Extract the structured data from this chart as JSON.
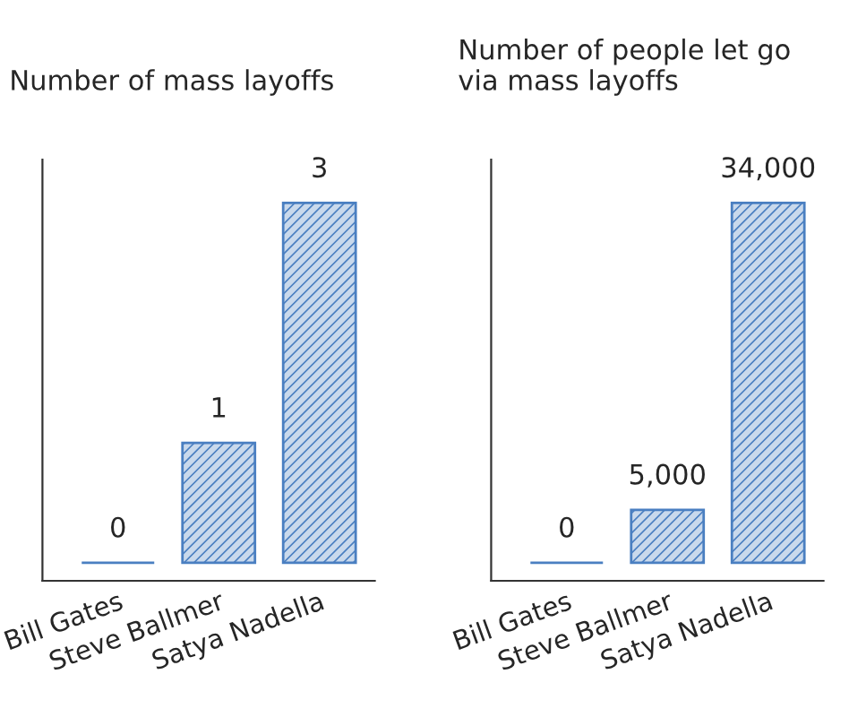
{
  "chart_data": [
    {
      "type": "bar",
      "title": "Number of mass layoffs",
      "categories": [
        "Bill Gates",
        "Steve Ballmer",
        "Satya Nadella"
      ],
      "values": [
        0,
        1,
        3
      ],
      "value_labels": [
        "0",
        "1",
        "3"
      ],
      "color": "#4a7fc1",
      "tick_labels": "x"
    },
    {
      "type": "bar",
      "title": "Number of people let go\nvia mass layoffs",
      "categories": [
        "Bill Gates",
        "Steve Ballmer",
        "Satya Nadella"
      ],
      "values": [
        0,
        5000,
        34000
      ],
      "value_labels": [
        "0",
        "5,000",
        "34,000"
      ],
      "color": "#4a7fc1",
      "tick_labels": "x"
    }
  ]
}
